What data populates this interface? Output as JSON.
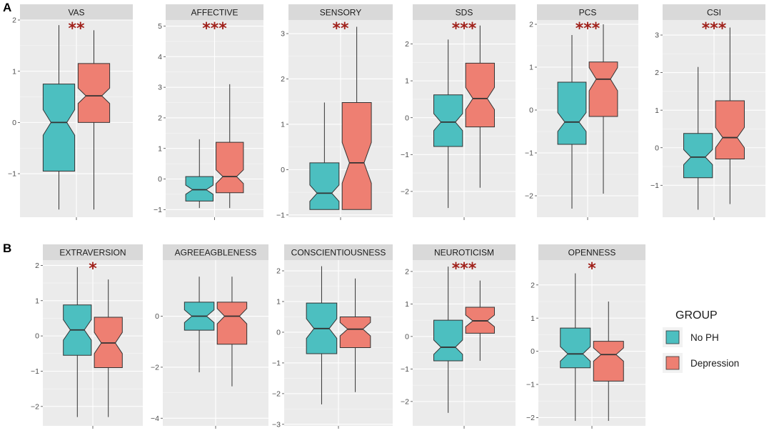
{
  "colors": {
    "no_ph": "#4CBFC0",
    "depression": "#EE7F72",
    "panel_bg": "#EBEBEB",
    "strip_bg": "#D9D9D9",
    "grid": "#FFFFFF",
    "significance": "#A0201A"
  },
  "panel_labels": [
    "A",
    "B"
  ],
  "legend": {
    "title": "GROUP",
    "entries": [
      {
        "label": "No PH",
        "color_key": "no_ph"
      },
      {
        "label": "Depression",
        "color_key": "depression"
      }
    ]
  },
  "chart_data": [
    {
      "type": "boxplot",
      "title": "VAS",
      "significance": "**",
      "ylim": [
        -1.85,
        2.0
      ],
      "yticks": [
        -1,
        0,
        1,
        2
      ],
      "ytick_labels": [
        "−1",
        "0",
        "1",
        "2"
      ],
      "series": [
        {
          "name": "No PH",
          "min": -1.7,
          "q1": -0.95,
          "median": 0.0,
          "q3": 0.75,
          "max": 1.9,
          "notch": [
            -0.25,
            0.25
          ]
        },
        {
          "name": "Depression",
          "min": -1.7,
          "q1": 0.0,
          "median": 0.52,
          "q3": 1.15,
          "max": 1.8,
          "notch": [
            0.37,
            0.67
          ]
        }
      ]
    },
    {
      "type": "boxplot",
      "title": "AFFECTIVE",
      "significance": "***",
      "ylim": [
        -1.25,
        5.2
      ],
      "yticks": [
        -1,
        0,
        1,
        2,
        3,
        4,
        5
      ],
      "ytick_labels": [
        "−1",
        "0",
        "1",
        "2",
        "3",
        "4",
        "5"
      ],
      "series": [
        {
          "name": "No PH",
          "min": -0.95,
          "q1": -0.72,
          "median": -0.35,
          "q3": 0.08,
          "max": 1.3,
          "notch": [
            -0.5,
            -0.2
          ]
        },
        {
          "name": "Depression",
          "min": -0.95,
          "q1": -0.45,
          "median": 0.08,
          "q3": 1.2,
          "max": 3.1,
          "notch": [
            -0.15,
            0.3
          ]
        }
      ]
    },
    {
      "type": "boxplot",
      "title": "SENSORY",
      "significance": "**",
      "ylim": [
        -1.05,
        3.3
      ],
      "yticks": [
        -1,
        0,
        1,
        2,
        3
      ],
      "ytick_labels": [
        "−1",
        "0",
        "1",
        "2",
        "3"
      ],
      "series": [
        {
          "name": "No PH",
          "min": -0.88,
          "q1": -0.88,
          "median": -0.52,
          "q3": 0.15,
          "max": 1.48,
          "notch": [
            -0.7,
            -0.34
          ]
        },
        {
          "name": "Depression",
          "min": -0.88,
          "q1": -0.88,
          "median": 0.15,
          "q3": 1.48,
          "max": 3.15,
          "notch": [
            -0.3,
            0.6
          ]
        }
      ]
    },
    {
      "type": "boxplot",
      "title": "SDS",
      "significance": "***",
      "ylim": [
        -2.7,
        2.65
      ],
      "yticks": [
        -2,
        -1,
        0,
        1,
        2
      ],
      "ytick_labels": [
        "−2",
        "−1",
        "0",
        "1",
        "2"
      ],
      "series": [
        {
          "name": "No PH",
          "min": -2.45,
          "q1": -0.78,
          "median": -0.12,
          "q3": 0.62,
          "max": 2.12,
          "notch": [
            -0.35,
            0.11
          ]
        },
        {
          "name": "Depression",
          "min": -1.9,
          "q1": -0.25,
          "median": 0.52,
          "q3": 1.48,
          "max": 2.5,
          "notch": [
            0.22,
            0.82
          ]
        }
      ]
    },
    {
      "type": "boxplot",
      "title": "PCS",
      "significance": "***",
      "ylim": [
        -2.5,
        2.1
      ],
      "yticks": [
        -2,
        -1,
        0,
        1,
        2
      ],
      "ytick_labels": [
        "−2",
        "−1",
        "0",
        "1",
        "2"
      ],
      "series": [
        {
          "name": "No PH",
          "min": -2.3,
          "q1": -0.8,
          "median": -0.28,
          "q3": 0.65,
          "max": 1.75,
          "notch": [
            -0.5,
            -0.06
          ]
        },
        {
          "name": "Depression",
          "min": -1.95,
          "q1": -0.15,
          "median": 0.72,
          "q3": 1.12,
          "max": 2.0,
          "notch": [
            0.45,
            0.99
          ]
        }
      ]
    },
    {
      "type": "boxplot",
      "title": "CSI",
      "significance": "***",
      "ylim": [
        -1.85,
        3.4
      ],
      "yticks": [
        -1,
        0,
        1,
        2,
        3
      ],
      "ytick_labels": [
        "−1",
        "0",
        "1",
        "2",
        "3"
      ],
      "series": [
        {
          "name": "No PH",
          "min": -1.65,
          "q1": -0.8,
          "median": -0.25,
          "q3": 0.38,
          "max": 2.15,
          "notch": [
            -0.45,
            -0.05
          ]
        },
        {
          "name": "Depression",
          "min": -1.5,
          "q1": -0.3,
          "median": 0.27,
          "q3": 1.25,
          "max": 3.2,
          "notch": [
            0.0,
            0.54
          ]
        }
      ]
    },
    {
      "type": "boxplot",
      "title": "EXTRAVERSION",
      "significance": "*",
      "ylim": [
        -2.55,
        2.15
      ],
      "yticks": [
        -2,
        -1,
        0,
        1,
        2
      ],
      "ytick_labels": [
        "−2",
        "−1",
        "0",
        "1",
        "2"
      ],
      "series": [
        {
          "name": "No PH",
          "min": -2.3,
          "q1": -0.55,
          "median": 0.17,
          "q3": 0.88,
          "max": 1.95,
          "notch": [
            -0.12,
            0.46
          ]
        },
        {
          "name": "Depression",
          "min": -2.3,
          "q1": -0.9,
          "median": -0.2,
          "q3": 0.53,
          "max": 1.6,
          "notch": [
            -0.5,
            0.1
          ]
        }
      ]
    },
    {
      "type": "boxplot",
      "title": "AGREEAGBLENESS",
      "significance": "",
      "ylim": [
        -4.3,
        2.2
      ],
      "yticks": [
        -4,
        -2,
        0
      ],
      "ytick_labels": [
        "−4",
        "−2",
        "0"
      ],
      "series": [
        {
          "name": "No PH",
          "min": -2.2,
          "q1": -0.55,
          "median": 0.0,
          "q3": 0.55,
          "max": 1.55,
          "notch": [
            -0.25,
            0.25
          ]
        },
        {
          "name": "Depression",
          "min": -2.75,
          "q1": -1.1,
          "median": 0.0,
          "q3": 0.55,
          "max": 1.55,
          "notch": [
            -0.3,
            0.3
          ]
        }
      ]
    },
    {
      "type": "boxplot",
      "title": "CONSCIENTIOUSNESS",
      "significance": "",
      "ylim": [
        -3.05,
        2.35
      ],
      "yticks": [
        -3,
        -2,
        -1,
        0,
        1,
        2
      ],
      "ytick_labels": [
        "−3",
        "−2",
        "−1",
        "0",
        "1",
        "2"
      ],
      "series": [
        {
          "name": "No PH",
          "min": -2.35,
          "q1": -0.7,
          "median": 0.12,
          "q3": 0.95,
          "max": 2.15,
          "notch": [
            -0.2,
            0.44
          ]
        },
        {
          "name": "Depression",
          "min": -1.95,
          "q1": -0.5,
          "median": 0.1,
          "q3": 0.5,
          "max": 1.75,
          "notch": [
            -0.12,
            0.32
          ]
        }
      ]
    },
    {
      "type": "boxplot",
      "title": "NEUROTICISM",
      "significance": "***",
      "ylim": [
        -2.75,
        2.35
      ],
      "yticks": [
        -2,
        -1,
        0,
        1,
        2
      ],
      "ytick_labels": [
        "−2",
        "−1",
        "0",
        "1",
        "2"
      ],
      "series": [
        {
          "name": "No PH",
          "min": -2.35,
          "q1": -0.75,
          "median": -0.33,
          "q3": 0.5,
          "max": 2.15,
          "notch": [
            -0.55,
            -0.11
          ]
        },
        {
          "name": "Depression",
          "min": -0.75,
          "q1": 0.1,
          "median": 0.48,
          "q3": 0.9,
          "max": 1.72,
          "notch": [
            0.3,
            0.66
          ]
        }
      ]
    },
    {
      "type": "boxplot",
      "title": "OPENNESS",
      "significance": "*",
      "ylim": [
        -2.25,
        2.75
      ],
      "yticks": [
        -2,
        -1,
        0,
        1,
        2
      ],
      "ytick_labels": [
        "−2",
        "−1",
        "0",
        "1",
        "2"
      ],
      "series": [
        {
          "name": "No PH",
          "min": -2.1,
          "q1": -0.5,
          "median": -0.08,
          "q3": 0.7,
          "max": 2.35,
          "notch": [
            -0.3,
            0.14
          ]
        },
        {
          "name": "Depression",
          "min": -2.1,
          "q1": -0.9,
          "median": -0.1,
          "q3": 0.3,
          "max": 1.5,
          "notch": [
            -0.3,
            0.1
          ]
        }
      ]
    }
  ]
}
